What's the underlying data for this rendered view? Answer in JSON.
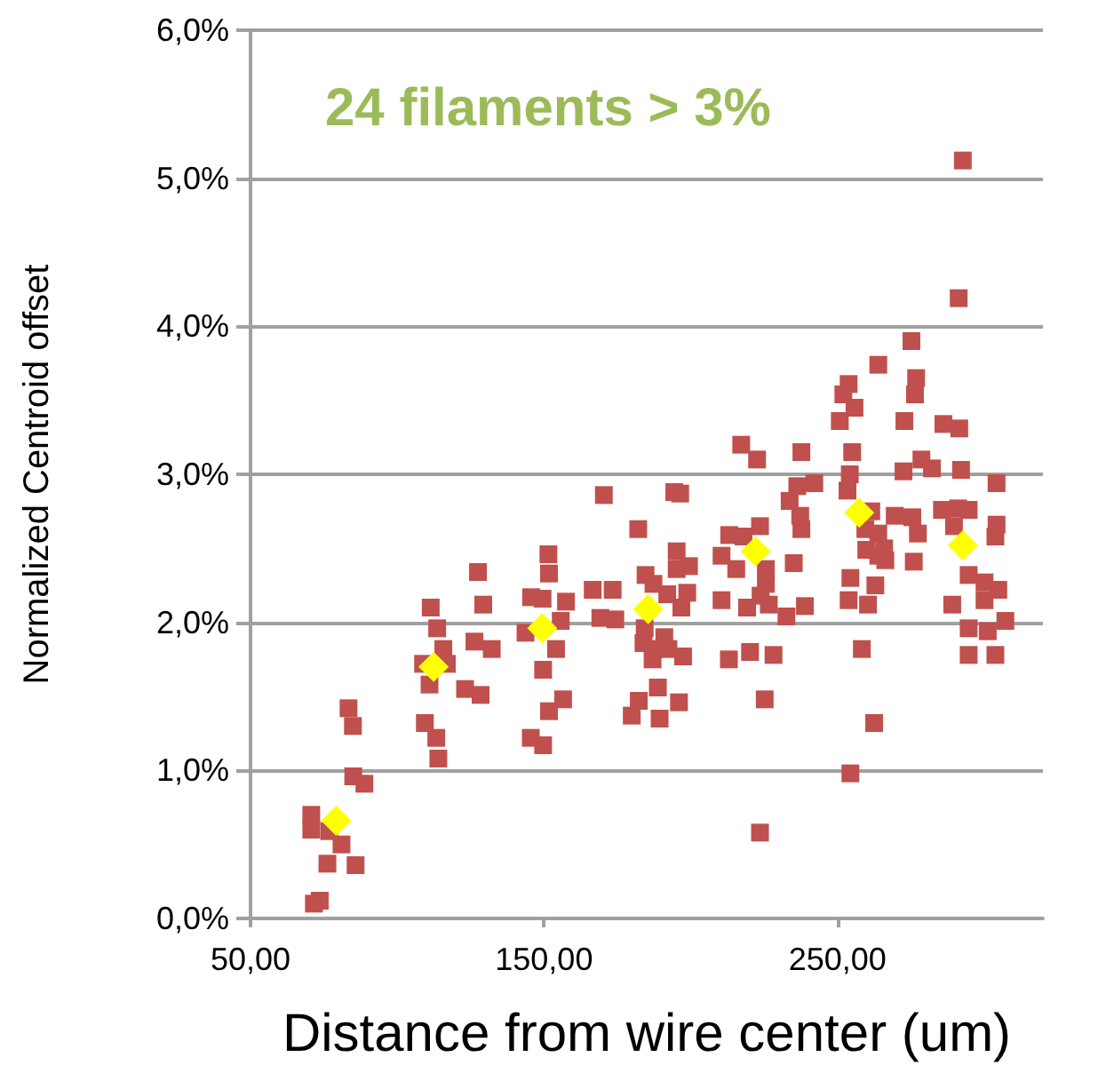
{
  "chart_data": {
    "type": "scatter",
    "xlabel": "Distance from wire center (um)",
    "ylabel": "Normalized Centroid offset",
    "annotations": [
      "24 filaments > 3%"
    ],
    "xlim": [
      50,
      320
    ],
    "xticks": [
      {
        "value": 50,
        "label": "50,00"
      },
      {
        "value": 150,
        "label": "150,00"
      },
      {
        "value": 250,
        "label": "250,00"
      }
    ],
    "ylim": [
      0,
      6
    ],
    "yticks": [
      {
        "value": 0,
        "label": "0,0%"
      },
      {
        "value": 1,
        "label": "1,0%"
      },
      {
        "value": 2,
        "label": "2,0%"
      },
      {
        "value": 3,
        "label": "3,0%"
      },
      {
        "value": 4,
        "label": "4,0%"
      },
      {
        "value": 5,
        "label": "5,0%"
      },
      {
        "value": 6,
        "label": "6,0%"
      }
    ],
    "grid": "y",
    "series": [
      {
        "color": "#c0504d",
        "marker": "square",
        "x": [
          71.6,
          73.6,
          76.2,
          85.8,
          81.0,
          70.7,
          70.7,
          76.8,
          85.0,
          88.8,
          83.4,
          84.9,
          109.4,
          113.3,
          114.0,
          111.4,
          113.6,
          115.7,
          108.8,
          111.0,
          116.9,
          127.5,
          129.3,
          126.3,
          132.2,
          123.1,
          128.4,
          143.7,
          145.6,
          149.5,
          149.7,
          145.5,
          149.7,
          151.7,
          151.5,
          151.7,
          217.2,
          222.6,
          170.4,
          194.4,
          196.4,
          182.1,
          195.2,
          195.2,
          199.4,
          184.6,
          187.3,
          192.0,
          198.8,
          196.8,
          210.5,
          213.1,
          218.0,
          223.6,
          215.5,
          225.6,
          225.6,
          223.8,
          226.6,
          219.2,
          210.5,
          157.5,
          155.7,
          166.6,
          173.4,
          169.2,
          174.3,
          154.1,
          156.5,
          184.3,
          183.9,
          191.0,
          187.3,
          192.4,
          187.0,
          197.4,
          188.8,
          182.3,
          179.9,
          189.4,
          196.0,
          213.0,
          220.2,
          228.2,
          225.2,
          223.6,
          292.7,
          291.3,
          275.2,
          263.9,
          276.8,
          253.8,
          252.0,
          276.4,
          255.8,
          250.8,
          272.8,
          286.1,
          291.5,
          255.0,
          237.7,
          278.6,
          282.2,
          272.5,
          292.1,
          254.2,
          304.2,
          242.1,
          236.3,
          253.4,
          233.7,
          237.3,
          237.7,
          261.5,
          269.5,
          275.5,
          277.4,
          285.6,
          291.1,
          294.7,
          304.2,
          303.8,
          289.7,
          259.5,
          263.9,
          259.8,
          265.9,
          266.3,
          276.0,
          263.9,
          235.1,
          238.9,
          232.6,
          254.4,
          262.9,
          253.8,
          260.4,
          289.1,
          294.7,
          300.1,
          304.8,
          300.1,
          294.7,
          301.2,
          307.2,
          294.7,
          303.8,
          258.3,
          262.5,
          254.4
        ],
        "values": [
          0.1,
          0.12,
          0.37,
          0.36,
          0.5,
          0.7,
          0.6,
          0.59,
          0.96,
          0.91,
          1.42,
          1.3,
          1.32,
          1.22,
          1.08,
          2.1,
          1.96,
          1.82,
          1.72,
          1.58,
          1.72,
          2.34,
          2.12,
          1.87,
          1.82,
          1.55,
          1.51,
          1.93,
          2.17,
          2.16,
          1.68,
          1.22,
          1.17,
          1.4,
          2.46,
          2.33,
          3.2,
          3.1,
          2.86,
          2.88,
          2.87,
          2.63,
          2.48,
          2.36,
          2.38,
          2.32,
          2.26,
          2.19,
          2.2,
          2.1,
          2.45,
          2.59,
          2.58,
          2.65,
          2.36,
          2.36,
          2.26,
          2.18,
          2.12,
          2.1,
          2.15,
          2.14,
          2.01,
          2.22,
          2.22,
          2.03,
          2.02,
          1.82,
          1.48,
          1.96,
          1.86,
          1.9,
          1.82,
          1.82,
          1.75,
          1.77,
          1.56,
          1.47,
          1.37,
          1.35,
          1.46,
          1.75,
          1.8,
          1.78,
          1.48,
          0.58,
          5.12,
          4.19,
          3.9,
          3.74,
          3.65,
          3.61,
          3.54,
          3.54,
          3.45,
          3.36,
          3.36,
          3.34,
          3.31,
          3.15,
          3.15,
          3.1,
          3.04,
          3.02,
          3.03,
          3.0,
          2.94,
          2.94,
          2.92,
          2.89,
          2.82,
          2.72,
          2.63,
          2.75,
          2.72,
          2.71,
          2.6,
          2.76,
          2.77,
          2.76,
          2.66,
          2.58,
          2.65,
          2.63,
          2.6,
          2.49,
          2.5,
          2.42,
          2.41,
          2.45,
          2.4,
          2.11,
          2.04,
          2.3,
          2.25,
          2.15,
          2.12,
          2.12,
          2.32,
          2.27,
          2.22,
          2.15,
          1.96,
          1.94,
          2.01,
          1.78,
          1.78,
          1.82,
          1.32,
          0.98
        ]
      },
      {
        "color": "#ffff00",
        "marker": "diamond",
        "x": [
          79.2,
          112.4,
          149.4,
          185.5,
          222.1,
          257.4,
          292.7
        ],
        "values": [
          0.66,
          1.7,
          1.96,
          2.09,
          2.48,
          2.74,
          2.52
        ]
      }
    ]
  }
}
